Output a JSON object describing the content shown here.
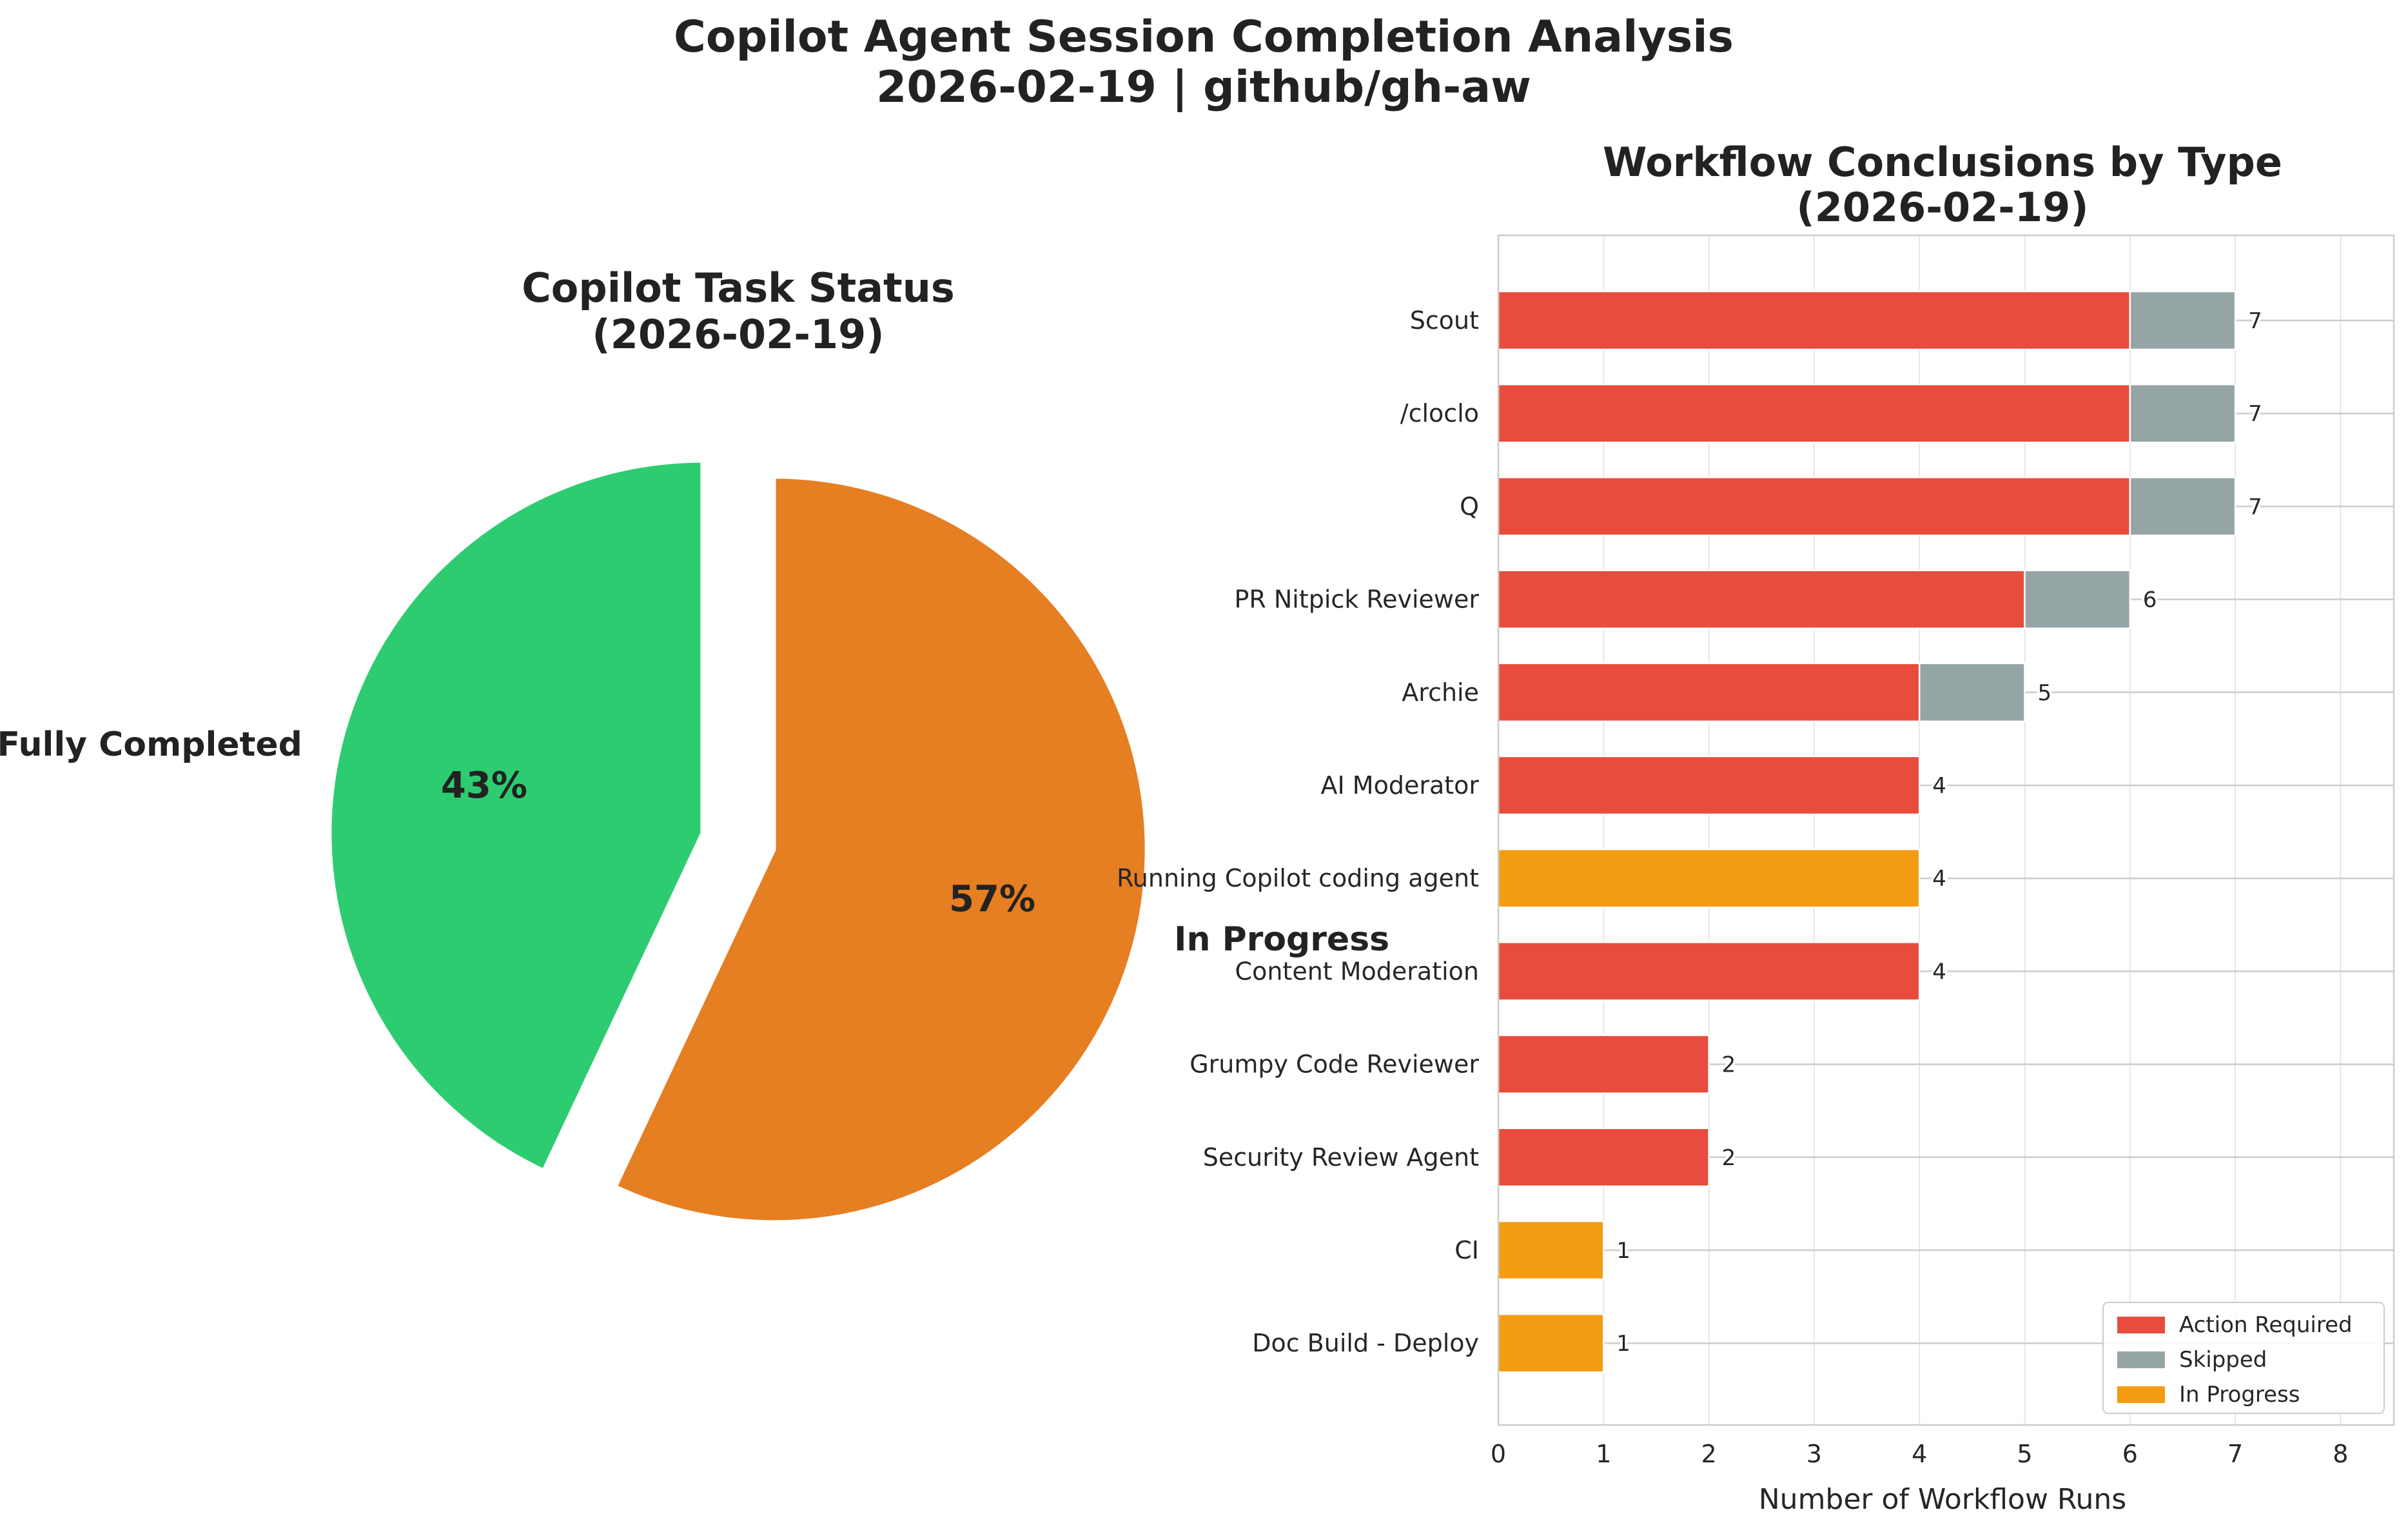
{
  "figure_title": {
    "line1": "Copilot Agent Session Completion Analysis",
    "line2": "2026-02-19 | github/gh-aw"
  },
  "chart_data": [
    {
      "type": "pie",
      "title": "Copilot Task Status",
      "subtitle": "(2026-02-19)",
      "slices": [
        {
          "label": "Fully Completed",
          "value": 43,
          "pct_label": "43%",
          "color": "#2ecc71"
        },
        {
          "label": "In Progress",
          "value": 57,
          "pct_label": "57%",
          "color": "#e67e22"
        }
      ]
    },
    {
      "type": "bar",
      "orientation": "horizontal",
      "stacked": true,
      "title": "Workflow Conclusions by Type",
      "subtitle": "(2026-02-19)",
      "xlabel": "Number of Workflow Runs",
      "ylabel": "",
      "xlim": [
        0,
        8.5
      ],
      "xticks": [
        "0",
        "1",
        "2",
        "3",
        "4",
        "5",
        "6",
        "7",
        "8"
      ],
      "grid": true,
      "legend_position": "lower-right",
      "categories": [
        "Scout",
        "/cloclo",
        "Q",
        "PR Nitpick Reviewer",
        "Archie",
        "AI Moderator",
        "Running Copilot coding agent",
        "Content Moderation",
        "Grumpy Code Reviewer",
        "Security Review Agent",
        "CI",
        "Doc Build - Deploy"
      ],
      "series": [
        {
          "name": "Action Required",
          "color": "#e74c3c",
          "values": [
            6,
            6,
            6,
            5,
            4,
            4,
            0,
            4,
            2,
            2,
            0,
            0
          ]
        },
        {
          "name": "Skipped",
          "color": "#95a5a6",
          "values": [
            1,
            1,
            1,
            1,
            1,
            0,
            0,
            0,
            0,
            0,
            0,
            0
          ]
        },
        {
          "name": "In Progress",
          "color": "#f39c12",
          "values": [
            0,
            0,
            0,
            0,
            0,
            0,
            4,
            0,
            0,
            0,
            1,
            1
          ]
        }
      ],
      "totals": [
        "7",
        "7",
        "7",
        "6",
        "5",
        "4",
        "4",
        "4",
        "2",
        "2",
        "1",
        "1"
      ]
    }
  ]
}
